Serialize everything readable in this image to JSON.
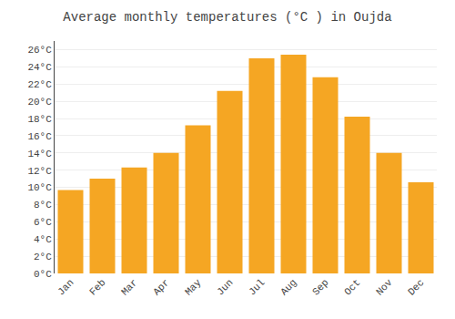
{
  "chart_data": {
    "type": "bar",
    "title": "Average monthly temperatures (°C ) in Oujda",
    "categories": [
      "Jan",
      "Feb",
      "Mar",
      "Apr",
      "May",
      "Jun",
      "Jul",
      "Aug",
      "Sep",
      "Oct",
      "Nov",
      "Dec"
    ],
    "values": [
      9.7,
      11.0,
      12.3,
      14.0,
      17.2,
      21.2,
      25.0,
      25.4,
      22.8,
      18.2,
      14.0,
      10.6
    ],
    "color": "#F5A623",
    "ylim": [
      0,
      27
    ],
    "yticks": [
      {
        "value": 0,
        "label": "0°C"
      },
      {
        "value": 2,
        "label": "2°C"
      },
      {
        "value": 4,
        "label": "4°C"
      },
      {
        "value": 6,
        "label": "6°C"
      },
      {
        "value": 8,
        "label": "8°C"
      },
      {
        "value": 10,
        "label": "10°C"
      },
      {
        "value": 12,
        "label": "12°C"
      },
      {
        "value": 14,
        "label": "14°C"
      },
      {
        "value": 16,
        "label": "16°C"
      },
      {
        "value": 18,
        "label": "18°C"
      },
      {
        "value": 20,
        "label": "20°C"
      },
      {
        "value": 22,
        "label": "22°C"
      },
      {
        "value": 24,
        "label": "24°C"
      },
      {
        "value": 26,
        "label": "26°C"
      }
    ],
    "grid": true
  }
}
